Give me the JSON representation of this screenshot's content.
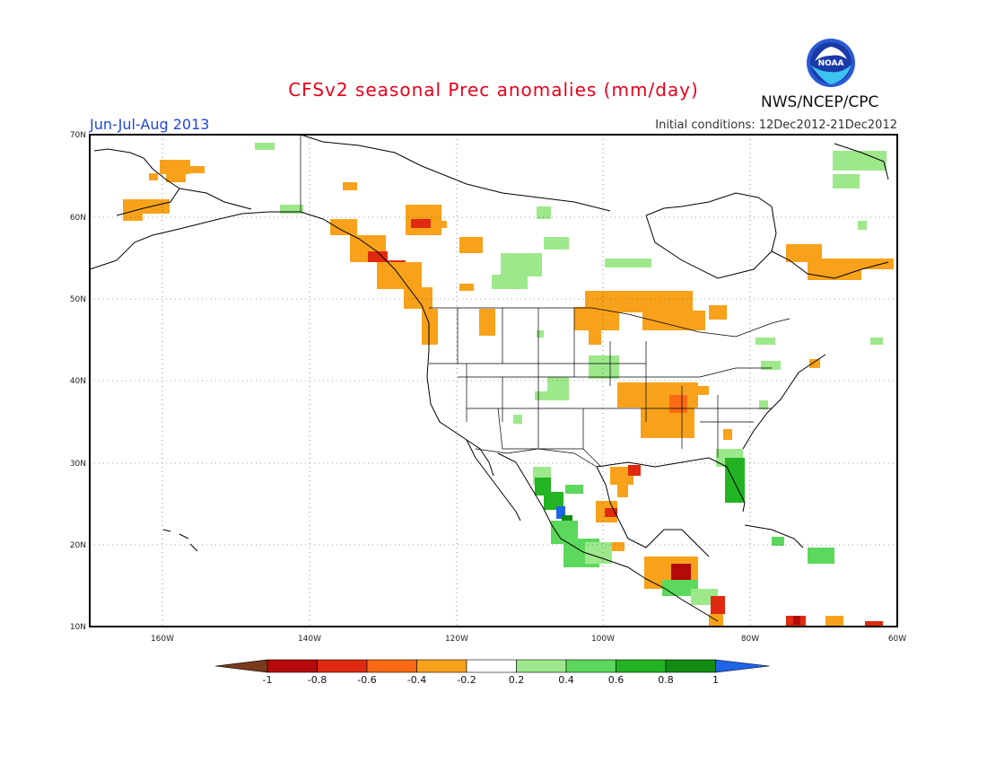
{
  "header": {
    "title": "CFSv2 seasonal Prec anomalies (mm/day)",
    "period": "Jun-Jul-Aug 2013",
    "initial_conditions": "Initial conditions: 12Dec2012-21Dec2012",
    "agency": "NWS/NCEP/CPC",
    "logo_text": "NOAA"
  },
  "map": {
    "lon_range": [
      -173,
      -60
    ],
    "lat_range": [
      10,
      70
    ],
    "lon_ticks": [
      "160W",
      "140W",
      "120W",
      "100W",
      "80W",
      "60W"
    ],
    "lat_ticks": [
      "70N",
      "60N",
      "50N",
      "40N",
      "30N",
      "20N",
      "10N"
    ],
    "grid": true
  },
  "colorbar": {
    "labels": [
      "-1",
      "-0.8",
      "-0.6",
      "-0.4",
      "-0.2",
      "0.2",
      "0.4",
      "0.6",
      "0.8",
      "1"
    ],
    "colors": [
      "#7a3a1c",
      "#b40a0a",
      "#e02a10",
      "#fa6a14",
      "#f7a21a",
      "#ffffff",
      "#9ee88c",
      "#5cd85c",
      "#22b422",
      "#128c12",
      "#1e64e6"
    ]
  }
}
